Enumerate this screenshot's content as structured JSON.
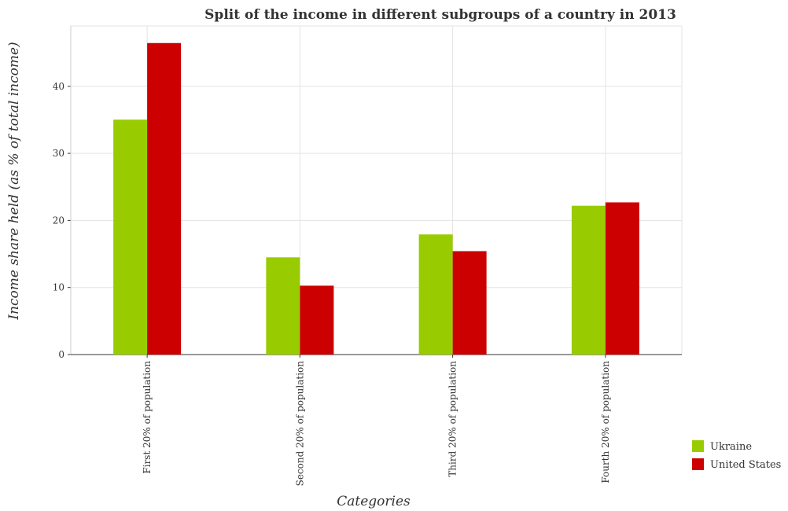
{
  "chart_data": {
    "type": "bar",
    "title": "Split of the income in different subgroups of a country in 2013",
    "xlabel": "Categories",
    "ylabel": "Income share held (as % of total income)",
    "categories": [
      "First 20% of population",
      "Second 20% of population",
      "Third 20% of population",
      "Fourth 20% of population"
    ],
    "series": [
      {
        "name": "Ukraine",
        "color": "#99cc00",
        "values": [
          35.03,
          14.5,
          17.91,
          22.19
        ]
      },
      {
        "name": "United States",
        "color": "#cc0000",
        "values": [
          46.45,
          10.27,
          15.42,
          22.69
        ]
      }
    ],
    "ylim": [
      0,
      49
    ],
    "yticks": [
      0,
      10,
      20,
      30,
      40
    ],
    "grid": true,
    "legend_position": "bottom-right"
  }
}
